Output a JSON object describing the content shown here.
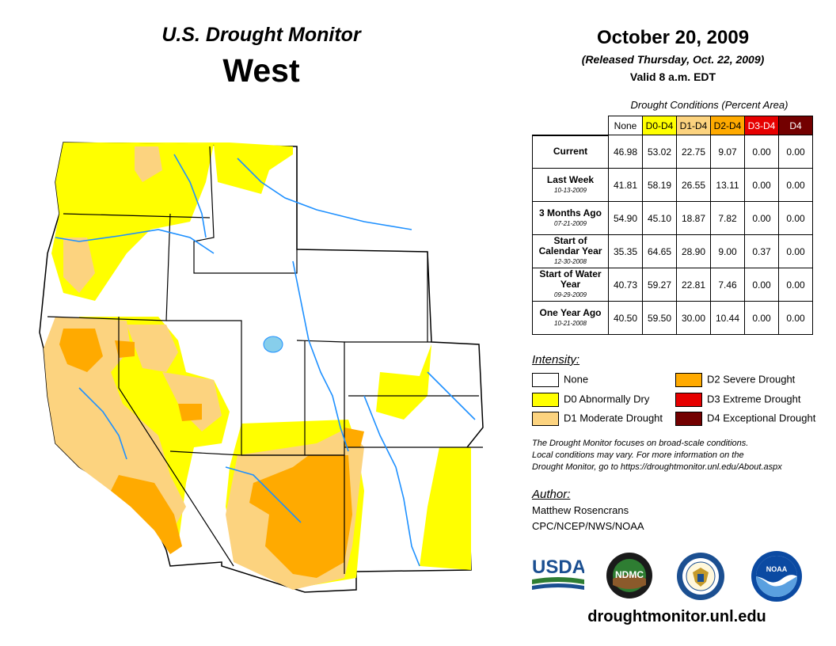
{
  "header": {
    "title": "U.S. Drought Monitor",
    "region": "West",
    "date": "October 20, 2009",
    "released": "(Released Thursday, Oct. 22, 2009)",
    "valid": "Valid 8 a.m. EDT"
  },
  "conditions": {
    "caption": "Drought Conditions (Percent Area)",
    "columns": [
      "None",
      "D0-D4",
      "D1-D4",
      "D2-D4",
      "D3-D4",
      "D4"
    ],
    "column_colors": [
      "#ffffff",
      "#ffff00",
      "#fcd37f",
      "#ffaa00",
      "#e60000",
      "#730000"
    ],
    "column_text_colors": [
      "#000000",
      "#000000",
      "#000000",
      "#000000",
      "#ffffff",
      "#ffffff"
    ],
    "rows": [
      {
        "label": "Current",
        "sub": "",
        "values": [
          "46.98",
          "53.02",
          "22.75",
          "9.07",
          "0.00",
          "0.00"
        ]
      },
      {
        "label": "Last Week",
        "sub": "10-13-2009",
        "values": [
          "41.81",
          "58.19",
          "26.55",
          "13.11",
          "0.00",
          "0.00"
        ]
      },
      {
        "label": "3 Months Ago",
        "sub": "07-21-2009",
        "values": [
          "54.90",
          "45.10",
          "18.87",
          "7.82",
          "0.00",
          "0.00"
        ]
      },
      {
        "label": "Start of Calendar Year",
        "sub": "12-30-2008",
        "values": [
          "35.35",
          "64.65",
          "28.90",
          "9.00",
          "0.37",
          "0.00"
        ]
      },
      {
        "label": "Start of Water Year",
        "sub": "09-29-2009",
        "values": [
          "40.73",
          "59.27",
          "22.81",
          "7.46",
          "0.00",
          "0.00"
        ]
      },
      {
        "label": "One Year Ago",
        "sub": "10-21-2008",
        "values": [
          "40.50",
          "59.50",
          "30.00",
          "10.44",
          "0.00",
          "0.00"
        ]
      }
    ]
  },
  "legend": {
    "title": "Intensity:",
    "items": [
      {
        "label": "None",
        "color": "#ffffff"
      },
      {
        "label": "D0 Abnormally Dry",
        "color": "#ffff00"
      },
      {
        "label": "D1 Moderate Drought",
        "color": "#fcd37f"
      },
      {
        "label": "D2 Severe Drought",
        "color": "#ffaa00"
      },
      {
        "label": "D3 Extreme Drought",
        "color": "#e60000"
      },
      {
        "label": "D4 Exceptional Drought",
        "color": "#730000"
      }
    ]
  },
  "note": {
    "line1": "The Drought Monitor focuses on broad-scale conditions.",
    "line2": "Local conditions may vary. For more information on the",
    "line3": "Drought Monitor, go to https://droughtmonitor.unl.edu/About.aspx"
  },
  "author": {
    "title": "Author:",
    "name": "Matthew Rosencrans",
    "org": "CPC/NCEP/NWS/NOAA"
  },
  "logos": {
    "usda": "USDA",
    "ndmc": "NDMC",
    "noaa": "NOAA"
  },
  "footer": {
    "url": "droughtmonitor.unl.edu"
  },
  "map": {
    "colors": {
      "none": "#ffffff",
      "d0": "#ffff00",
      "d1": "#fcd37f",
      "d2": "#ffaa00",
      "river": "#1e90ff",
      "border": "#000000"
    }
  }
}
